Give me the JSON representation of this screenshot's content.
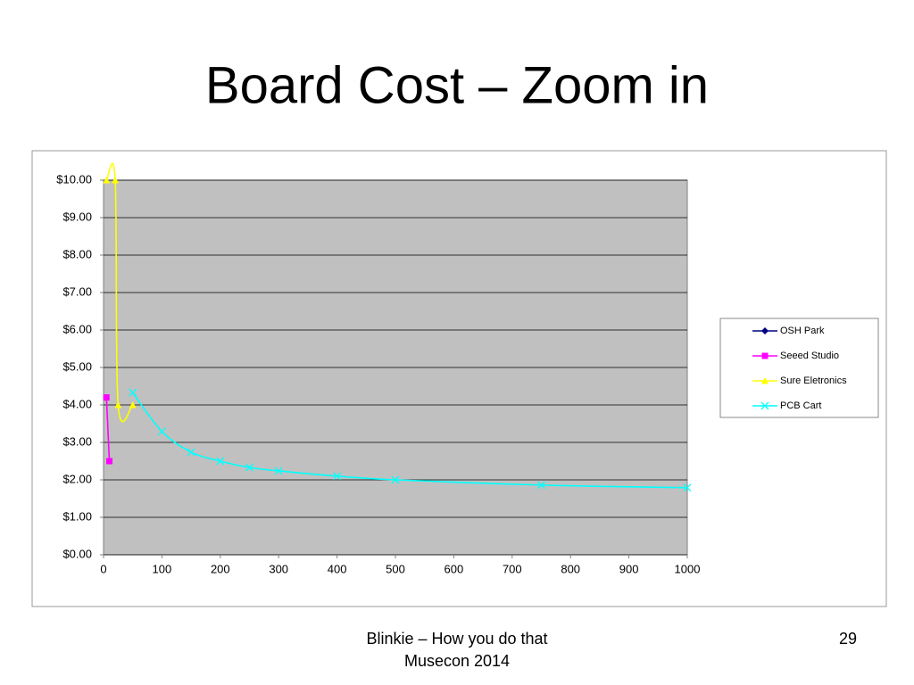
{
  "slide": {
    "title": "Board Cost – Zoom in",
    "footer": [
      "Blinkie – How you do that",
      "Musecon 2014"
    ],
    "page_number": "29"
  },
  "chart_data": {
    "type": "line",
    "smooth": true,
    "grid": true,
    "legend": "right",
    "xlim": [
      0,
      1000
    ],
    "xticks": [
      0,
      100,
      200,
      300,
      400,
      500,
      600,
      700,
      800,
      900,
      1000
    ],
    "ylim": [
      0,
      10
    ],
    "yticks": [
      {
        "value": 0,
        "label": "$0.00"
      },
      {
        "value": 1,
        "label": "$1.00"
      },
      {
        "value": 2,
        "label": "$2.00"
      },
      {
        "value": 3,
        "label": "$3.00"
      },
      {
        "value": 4,
        "label": "$4.00"
      },
      {
        "value": 5,
        "label": "$5.00"
      },
      {
        "value": 6,
        "label": "$6.00"
      },
      {
        "value": 7,
        "label": "$7.00"
      },
      {
        "value": 8,
        "label": "$8.00"
      },
      {
        "value": 9,
        "label": "$9.00"
      },
      {
        "value": 10,
        "label": "$10.00"
      }
    ],
    "series": [
      {
        "name": "OSH Park",
        "color": "#000080",
        "marker": "diamond",
        "x": [],
        "values": []
      },
      {
        "name": "Seeed Studio",
        "color": "#ff00ff",
        "marker": "square",
        "x": [
          5,
          10
        ],
        "values": [
          4.2,
          2.5
        ]
      },
      {
        "name": "Sure Eletronics",
        "color": "#ffff00",
        "marker": "triangle",
        "x": [
          5,
          20,
          25,
          50
        ],
        "values": [
          10,
          10,
          4,
          4
        ]
      },
      {
        "name": "PCB Cart",
        "color": "#00ffff",
        "marker": "x",
        "x": [
          50,
          100,
          150,
          200,
          250,
          300,
          400,
          500,
          750,
          1000
        ],
        "values": [
          4.33,
          3.29,
          2.74,
          2.5,
          2.33,
          2.24,
          2.1,
          2.0,
          1.86,
          1.79
        ]
      }
    ]
  }
}
